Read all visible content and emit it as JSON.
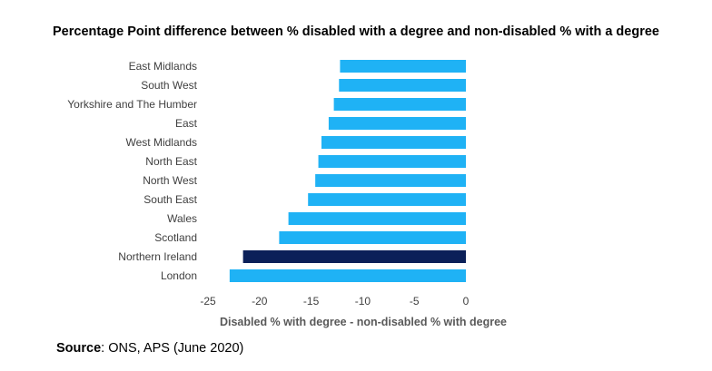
{
  "chart_data": {
    "type": "bar",
    "orientation": "horizontal",
    "title": "Percentage Point difference between % disabled with a degree and non-disabled % with a degree",
    "xlabel": "Disabled % with degree - non-disabled % with degree",
    "ylabel": "",
    "xlim": [
      -25,
      0
    ],
    "xticks": [
      "-25",
      "-20",
      "-15",
      "-10",
      "-5",
      "0"
    ],
    "categories": [
      "East Midlands",
      "South West",
      "Yorkshire and The Humber",
      "East",
      "West Midlands",
      "North East",
      "North West",
      "South East",
      "Wales",
      "Scotland",
      "Northern Ireland",
      "London"
    ],
    "values": [
      -12.2,
      -12.3,
      -12.8,
      -13.3,
      -14.0,
      -14.3,
      -14.6,
      -15.3,
      -17.2,
      -18.1,
      -21.6,
      -22.9
    ],
    "colors": [
      "#1fb2f5",
      "#1fb2f5",
      "#1fb2f5",
      "#1fb2f5",
      "#1fb2f5",
      "#1fb2f5",
      "#1fb2f5",
      "#1fb2f5",
      "#1fb2f5",
      "#1fb2f5",
      "#0b2059",
      "#1fb2f5"
    ],
    "grid": false,
    "legend": "none"
  },
  "source": {
    "label": "Source",
    "text": ": ONS, APS (June 2020)"
  }
}
